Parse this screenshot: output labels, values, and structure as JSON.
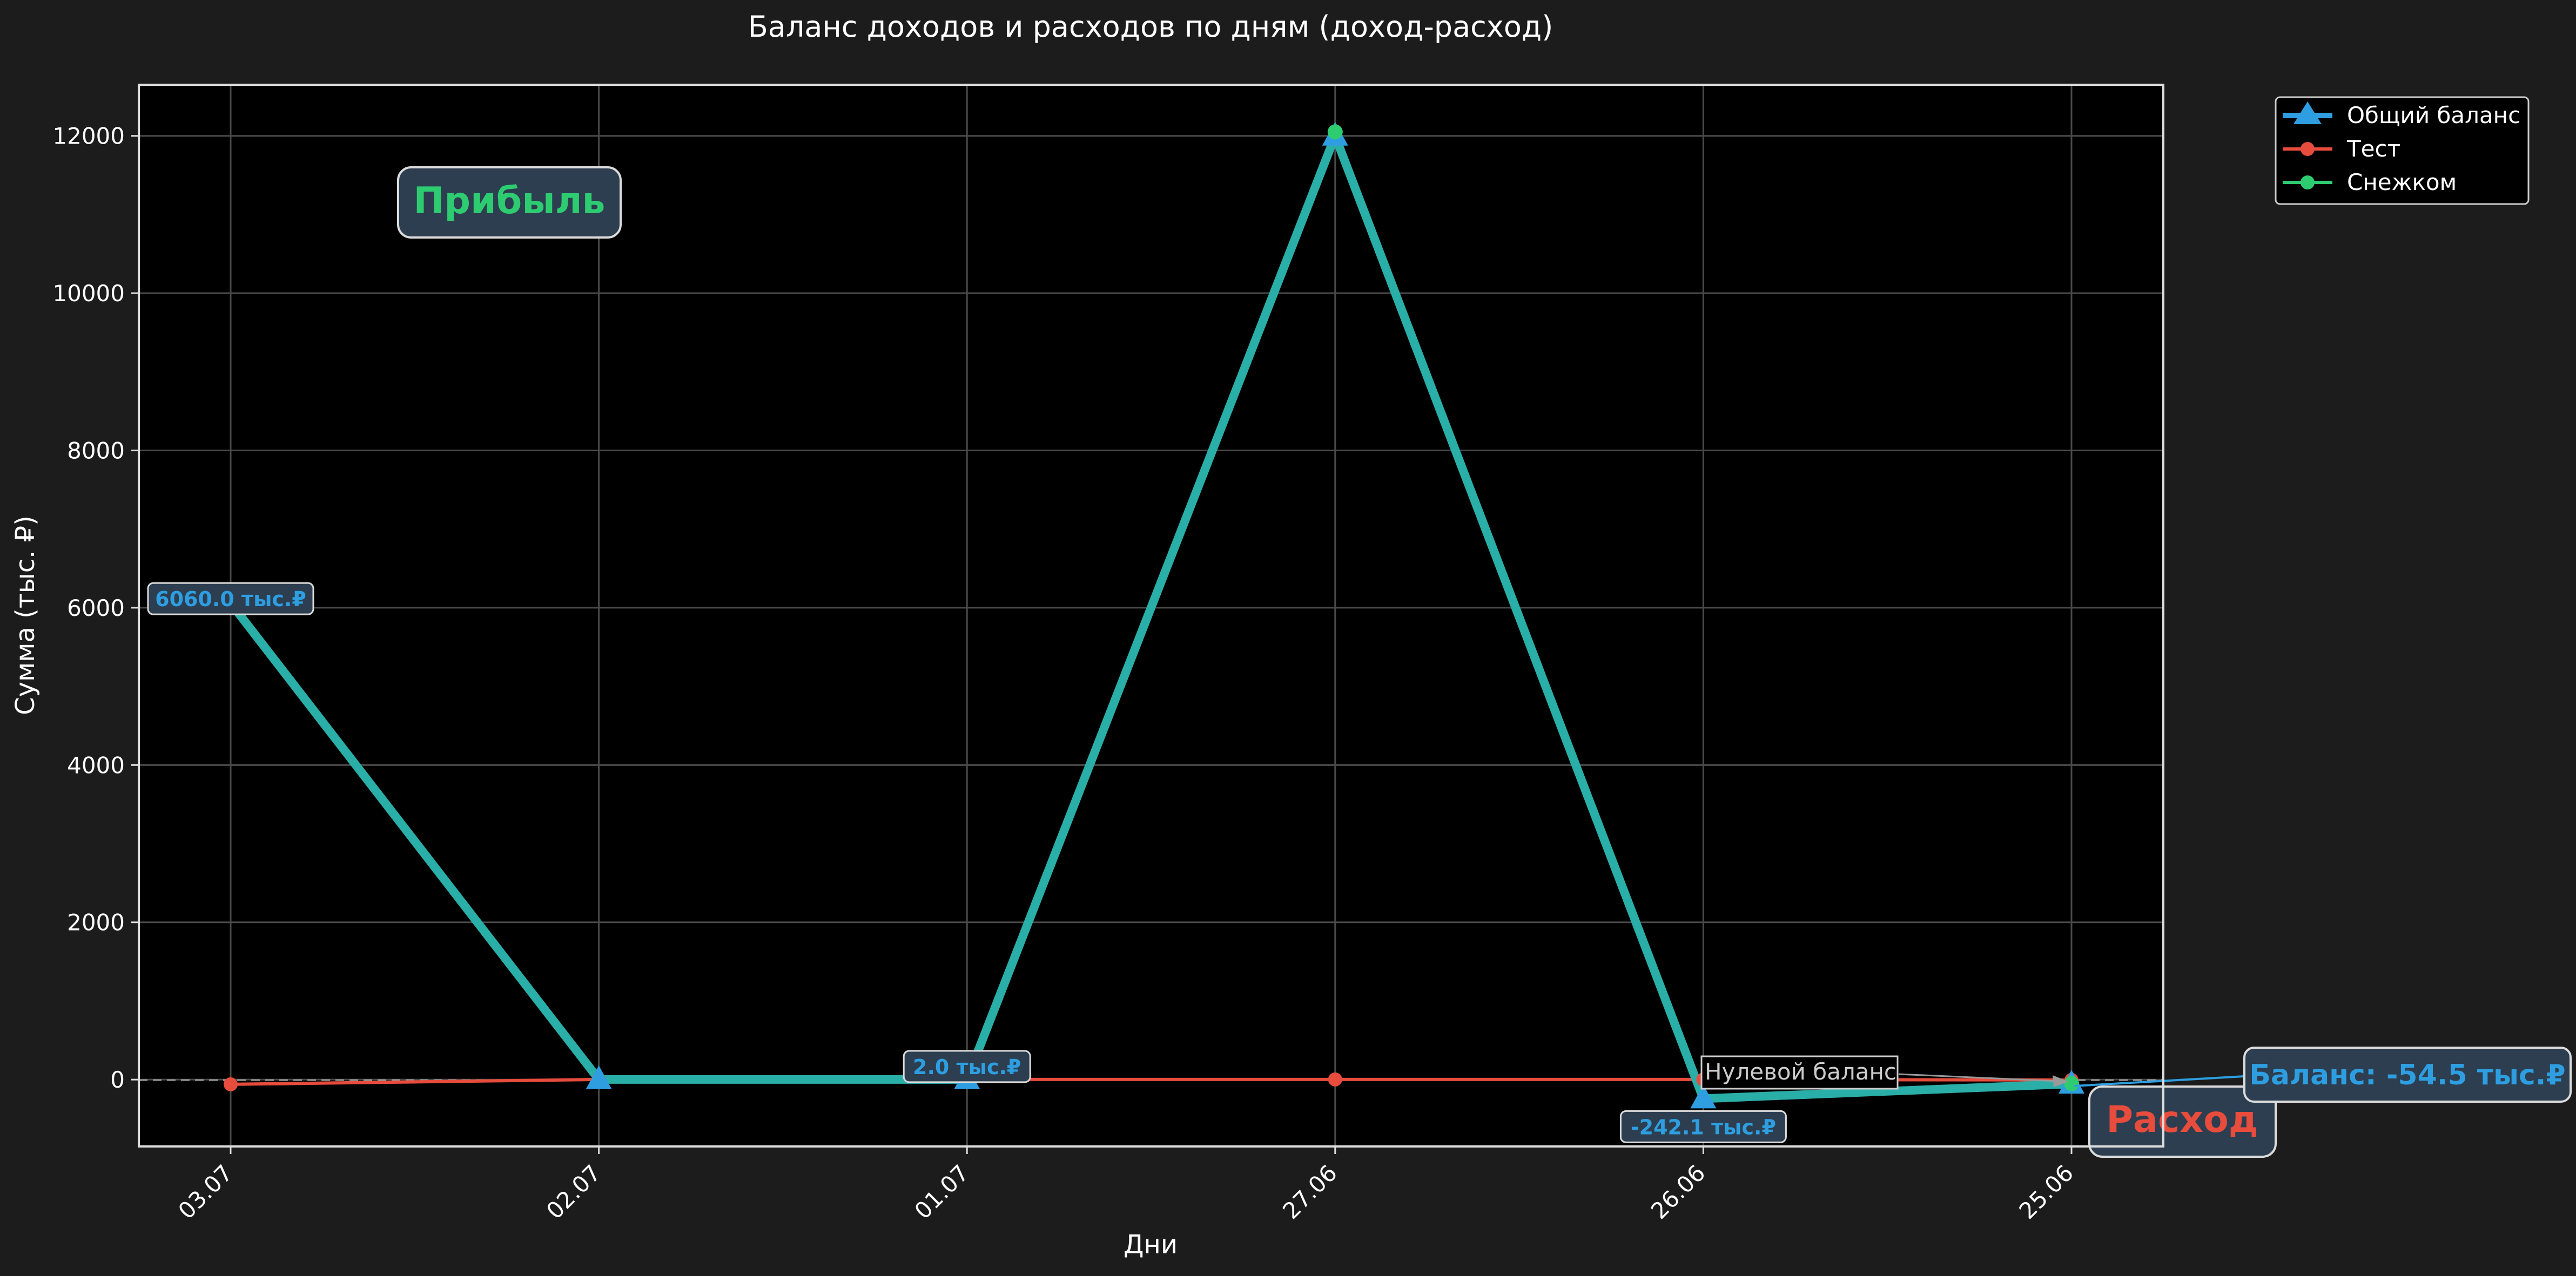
{
  "chart_data": {
    "type": "line",
    "title": "Баланс доходов и расходов по дням (доход-расход)",
    "xlabel": "Дни",
    "ylabel": "Сумма (тыс. ₽)",
    "categories": [
      "03.07",
      "02.07",
      "01.07",
      "27.06",
      "26.06",
      "25.06"
    ],
    "ylim": [
      -850,
      12650
    ],
    "yticks": [
      0,
      2000,
      4000,
      6000,
      8000,
      10000,
      12000
    ],
    "grid": true,
    "legend_position": "upper right, outside plot",
    "series": [
      {
        "name": "Общий баланс",
        "values": [
          6060.0,
          2.0,
          2.0,
          12000,
          -242.1,
          -54.5
        ],
        "color": "#2e9ee0",
        "overlay_color": "#2aaea8",
        "marker": "triangle"
      },
      {
        "name": "Тест",
        "values": [
          -60,
          2,
          2,
          2,
          2,
          -5
        ],
        "color": "#e74c3c",
        "marker": "circle"
      },
      {
        "name": "Снежком",
        "values": [
          6060,
          0,
          0,
          12050,
          -242,
          -50
        ],
        "color": "#2ecc71",
        "marker": "circle"
      }
    ],
    "data_labels": [
      {
        "index": 0,
        "value": 6060.0,
        "text": "6060.0 тыс.₽"
      },
      {
        "index": 2,
        "value": 2.0,
        "text": "2.0 тыс.₽"
      },
      {
        "index": 4,
        "value": -242.1,
        "text": "-242.1 тыс.₽"
      }
    ],
    "annotations": {
      "profit": "Прибыль",
      "expense": "Расход",
      "zero_line": "Нулевой баланс",
      "final_balance": "Баланс: -54.5 тыс.₽"
    },
    "colors": {
      "background": "#1c1c1c",
      "plot_background": "#000000",
      "profit": "#2ecc71",
      "expense": "#e74c3c",
      "balance_label": "#2e9ee0",
      "badge_fill": "#2c3e50"
    }
  }
}
